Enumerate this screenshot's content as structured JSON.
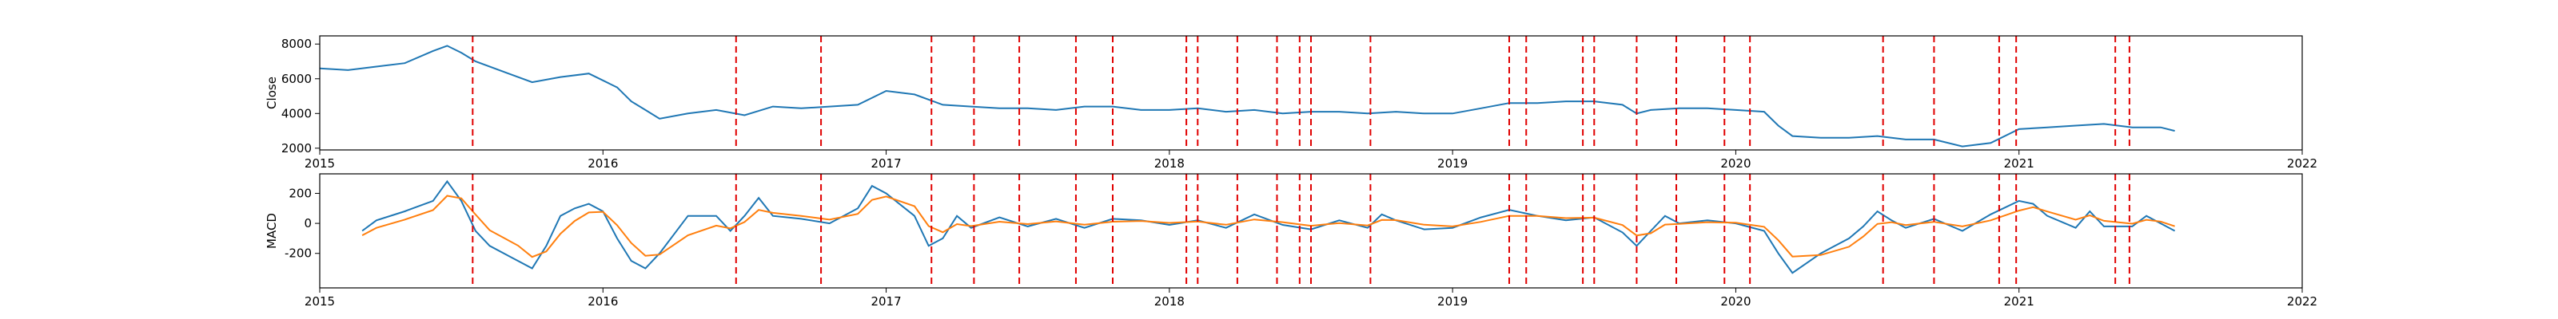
{
  "chart_data": [
    {
      "type": "line",
      "ylabel": "Close",
      "x": [
        2015.0,
        2015.1,
        2015.2,
        2015.3,
        2015.4,
        2015.45,
        2015.5,
        2015.55,
        2015.65,
        2015.75,
        2015.85,
        2015.95,
        2016.05,
        2016.1,
        2016.15,
        2016.2,
        2016.3,
        2016.4,
        2016.5,
        2016.6,
        2016.7,
        2016.8,
        2016.9,
        2017.0,
        2017.1,
        2017.2,
        2017.3,
        2017.4,
        2017.5,
        2017.6,
        2017.7,
        2017.8,
        2017.9,
        2018.0,
        2018.1,
        2018.2,
        2018.3,
        2018.4,
        2018.5,
        2018.6,
        2018.7,
        2018.8,
        2018.9,
        2019.0,
        2019.1,
        2019.2,
        2019.3,
        2019.4,
        2019.5,
        2019.6,
        2019.65,
        2019.7,
        2019.8,
        2019.9,
        2020.0,
        2020.1,
        2020.15,
        2020.2,
        2020.3,
        2020.4,
        2020.5,
        2020.6,
        2020.7,
        2020.8,
        2020.9,
        2021.0,
        2021.1,
        2021.2,
        2021.3,
        2021.4,
        2021.5,
        2021.55
      ],
      "series": [
        {
          "color": "#1f77b4",
          "values": [
            6600,
            6500,
            6700,
            6900,
            7600,
            7900,
            7500,
            7000,
            6400,
            5800,
            6100,
            6300,
            5500,
            4700,
            4200,
            3700,
            4000,
            4200,
            3900,
            4400,
            4300,
            4400,
            4500,
            5300,
            5100,
            4500,
            4400,
            4300,
            4300,
            4200,
            4400,
            4400,
            4200,
            4200,
            4300,
            4100,
            4200,
            4000,
            4100,
            4100,
            4000,
            4100,
            4000,
            4000,
            4300,
            4600,
            4600,
            4700,
            4700,
            4500,
            4000,
            4200,
            4300,
            4300,
            4200,
            4100,
            3300,
            2700,
            2600,
            2600,
            2700,
            2500,
            2500,
            2100,
            2300,
            3100,
            3200,
            3300,
            3400,
            3200,
            3200,
            3000
          ]
        }
      ],
      "xlim": [
        2015,
        2022
      ],
      "xticks": [
        2015,
        2016,
        2017,
        2018,
        2019,
        2020,
        2021,
        2022
      ],
      "ylim": [
        1900,
        8470
      ],
      "yticks": [
        2000,
        4000,
        6000,
        8000
      ],
      "vlines": [
        2015.54,
        2016.47,
        2016.77,
        2017.16,
        2017.31,
        2017.47,
        2017.67,
        2017.8,
        2018.06,
        2018.1,
        2018.24,
        2018.38,
        2018.46,
        2018.5,
        2018.71,
        2019.2,
        2019.26,
        2019.46,
        2019.5,
        2019.65,
        2019.79,
        2019.96,
        2020.05,
        2020.52,
        2020.7,
        2020.93,
        2020.99,
        2021.34,
        2021.39
      ],
      "vline_color": "#e00000"
    },
    {
      "type": "line",
      "ylabel": "MACD",
      "x": [
        2015.15,
        2015.2,
        2015.3,
        2015.4,
        2015.45,
        2015.5,
        2015.55,
        2015.6,
        2015.7,
        2015.75,
        2015.8,
        2015.85,
        2015.9,
        2015.95,
        2016.0,
        2016.05,
        2016.1,
        2016.15,
        2016.2,
        2016.3,
        2016.4,
        2016.45,
        2016.5,
        2016.55,
        2016.6,
        2016.7,
        2016.8,
        2016.9,
        2016.95,
        2017.0,
        2017.1,
        2017.15,
        2017.2,
        2017.25,
        2017.3,
        2017.4,
        2017.5,
        2017.6,
        2017.7,
        2017.8,
        2017.9,
        2018.0,
        2018.1,
        2018.2,
        2018.3,
        2018.4,
        2018.5,
        2018.6,
        2018.7,
        2018.75,
        2018.8,
        2018.9,
        2019.0,
        2019.1,
        2019.2,
        2019.3,
        2019.4,
        2019.5,
        2019.6,
        2019.65,
        2019.7,
        2019.75,
        2019.8,
        2019.9,
        2020.0,
        2020.1,
        2020.15,
        2020.2,
        2020.3,
        2020.4,
        2020.45,
        2020.5,
        2020.55,
        2020.6,
        2020.7,
        2020.8,
        2020.9,
        2021.0,
        2021.05,
        2021.1,
        2021.2,
        2021.25,
        2021.3,
        2021.4,
        2021.45,
        2021.5,
        2021.55
      ],
      "series": [
        {
          "color": "#1f77b4",
          "values": [
            -50,
            20,
            80,
            150,
            280,
            150,
            -50,
            -150,
            -250,
            -300,
            -150,
            50,
            100,
            130,
            80,
            -100,
            -250,
            -300,
            -200,
            50,
            50,
            -50,
            50,
            170,
            50,
            30,
            0,
            100,
            250,
            200,
            50,
            -150,
            -100,
            50,
            -30,
            40,
            -20,
            30,
            -30,
            30,
            20,
            -10,
            20,
            -30,
            60,
            -10,
            -40,
            20,
            -30,
            60,
            20,
            -40,
            -30,
            40,
            90,
            50,
            20,
            40,
            -60,
            -150,
            -50,
            50,
            0,
            20,
            0,
            -50,
            -200,
            -330,
            -200,
            -100,
            -20,
            80,
            20,
            -30,
            30,
            -50,
            60,
            150,
            130,
            50,
            -30,
            80,
            -20,
            -20,
            50,
            0,
            -50
          ]
        },
        {
          "color": "#ff7f0e",
          "values": [
            -80,
            -30,
            25,
            88,
            184,
            167,
            59,
            -46,
            -148,
            -224,
            -187,
            -69,
            16,
            73,
            77,
            -12,
            -131,
            -216,
            -208,
            -79,
            -15,
            -33,
            9,
            90,
            70,
            50,
            25,
            63,
            157,
            179,
            115,
            -18,
            -59,
            -5,
            -18,
            11,
            -5,
            13,
            -9,
            11,
            16,
            3,
            12,
            -9,
            26,
            8,
            -16,
            2,
            -14,
            23,
            22,
            -9,
            -20,
            10,
            50,
            50,
            35,
            38,
            -11,
            -81,
            -66,
            -8,
            -4,
            8,
            4,
            -23,
            -112,
            -221,
            -211,
            -156,
            -88,
            -4,
            8,
            -11,
            10,
            -20,
            20,
            85,
            108,
            79,
            25,
            53,
            17,
            -2,
            24,
            12,
            -19
          ]
        }
      ],
      "xlim": [
        2015,
        2022
      ],
      "xticks": [
        2015,
        2016,
        2017,
        2018,
        2019,
        2020,
        2021,
        2022
      ],
      "ylim": [
        -430,
        330
      ],
      "yticks": [
        -200,
        0,
        200
      ],
      "vlines": [
        2015.54,
        2016.47,
        2016.77,
        2017.16,
        2017.31,
        2017.47,
        2017.67,
        2017.8,
        2018.06,
        2018.1,
        2018.24,
        2018.38,
        2018.46,
        2018.5,
        2018.71,
        2019.2,
        2019.26,
        2019.46,
        2019.5,
        2019.65,
        2019.79,
        2019.96,
        2020.05,
        2020.52,
        2020.7,
        2020.93,
        2020.99,
        2021.34,
        2021.39
      ],
      "vline_color": "#e00000"
    }
  ]
}
